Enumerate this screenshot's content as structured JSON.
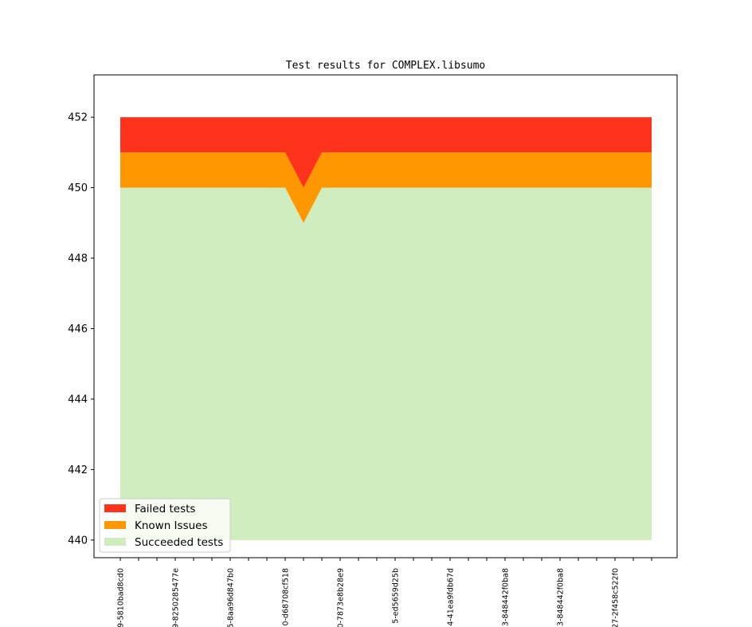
{
  "chart_data": {
    "type": "area",
    "title": "Test results for COMPLEX.libsumo",
    "xlabel": "",
    "ylabel": "",
    "ylim": [
      439.5,
      453.2
    ],
    "yticks": [
      440,
      442,
      444,
      446,
      448,
      450,
      452
    ],
    "x": [
      0,
      1,
      2,
      3,
      4,
      5,
      6,
      7,
      8,
      9,
      10,
      11,
      12,
      13,
      14,
      15,
      16,
      17,
      18,
      19,
      20,
      21,
      22,
      23,
      24,
      25,
      26,
      27,
      28,
      29
    ],
    "xtick_labels": [
      {
        "index": 0,
        "label": "9-5810bad8cd0"
      },
      {
        "index": 3,
        "label": "9-8250285477e"
      },
      {
        "index": 6,
        "label": "5-8aa96d847b0"
      },
      {
        "index": 9,
        "label": "0-d68708cf518"
      },
      {
        "index": 12,
        "label": "0-7873e8b28e9"
      },
      {
        "index": 15,
        "label": "5-ed5659d25b"
      },
      {
        "index": 18,
        "label": "4-41ea9fdb67d"
      },
      {
        "index": 21,
        "label": "3-848442f0ba8"
      },
      {
        "index": 24,
        "label": "3-848442f0ba8"
      },
      {
        "index": 27,
        "label": "27-2f458c522f0"
      }
    ],
    "stack_base": 440,
    "series": [
      {
        "name": "Succeeded tests",
        "color": "#cfedbf",
        "values": [
          10,
          10,
          10,
          10,
          10,
          10,
          10,
          10,
          10,
          10,
          9,
          10,
          10,
          10,
          10,
          10,
          10,
          10,
          10,
          10,
          10,
          10,
          10,
          10,
          10,
          10,
          10,
          10,
          10,
          10
        ]
      },
      {
        "name": "Known Issues",
        "color": "#ff9800",
        "values": [
          1,
          1,
          1,
          1,
          1,
          1,
          1,
          1,
          1,
          1,
          1,
          1,
          1,
          1,
          1,
          1,
          1,
          1,
          1,
          1,
          1,
          1,
          1,
          1,
          1,
          1,
          1,
          1,
          1,
          1
        ]
      },
      {
        "name": "Failed tests",
        "color": "#ff331c",
        "values": [
          1,
          1,
          1,
          1,
          1,
          1,
          1,
          1,
          1,
          1,
          2,
          1,
          1,
          1,
          1,
          1,
          1,
          1,
          1,
          1,
          1,
          1,
          1,
          1,
          1,
          1,
          1,
          1,
          1,
          1
        ]
      }
    ],
    "legend": {
      "placement": "lower-left",
      "entries": [
        "Failed tests",
        "Known Issues",
        "Succeeded tests"
      ]
    }
  }
}
